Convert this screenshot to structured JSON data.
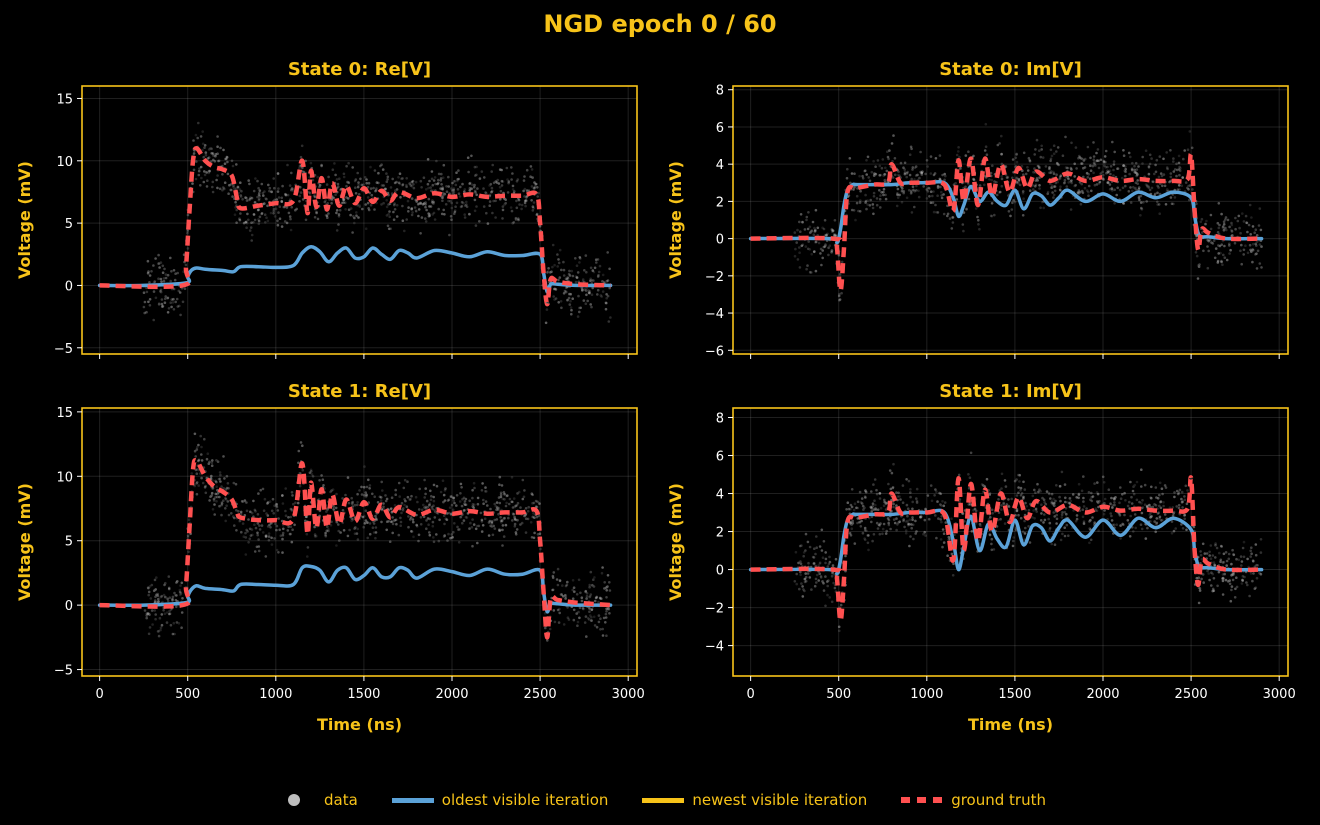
{
  "figure": {
    "suptitle": "NGD epoch 0 / 60",
    "colors": {
      "background": "#000000",
      "accent": "#F7C319",
      "tick_text": "#FFFFFF",
      "oldest": "#5BA2D8",
      "newest": "#F7C319",
      "truth": "#FF5050",
      "data": "#BDBDBD"
    }
  },
  "legend": {
    "placement": "bottom-center",
    "items": [
      {
        "label": "data",
        "kind": "dot"
      },
      {
        "label": "oldest visible iteration",
        "kind": "oldest"
      },
      {
        "label": "newest visible iteration",
        "kind": "newest"
      },
      {
        "label": "ground truth",
        "kind": "truth"
      }
    ]
  },
  "chart_data": [
    {
      "type": "line",
      "title": "State 0:  Re[V]",
      "xlabel": "",
      "ylabel": "Voltage (mV)",
      "xlim": [
        -100,
        3050
      ],
      "ylim": [
        -5.5,
        16
      ],
      "xticks": [
        0,
        500,
        1000,
        1500,
        2000,
        2500,
        3000
      ],
      "xtick_labels": [],
      "yticks": [
        -5,
        0,
        5,
        10,
        15
      ],
      "ytick_labels": [
        "−5",
        "0",
        "5",
        "10",
        "15"
      ],
      "grid": true,
      "series": [
        {
          "name": "oldest visible iteration",
          "style": "solid",
          "x": [
            0,
            250,
            490,
            500,
            520,
            550,
            600,
            700,
            760,
            800,
            900,
            1000,
            1100,
            1150,
            1200,
            1250,
            1300,
            1350,
            1400,
            1450,
            1500,
            1550,
            1600,
            1650,
            1700,
            1750,
            1800,
            1900,
            2000,
            2100,
            2200,
            2300,
            2400,
            2500,
            2520,
            2540,
            2560,
            2600,
            2700,
            2900
          ],
          "values": [
            0,
            0,
            0.2,
            0.7,
            1.2,
            1.4,
            1.3,
            1.2,
            1.1,
            1.5,
            1.5,
            1.45,
            1.6,
            2.6,
            3.1,
            2.7,
            1.9,
            2.6,
            3.0,
            2.2,
            2.3,
            3.0,
            2.5,
            2.1,
            2.8,
            2.6,
            2.2,
            2.8,
            2.6,
            2.3,
            2.7,
            2.4,
            2.4,
            2.5,
            1.0,
            -0.5,
            0.1,
            0.1,
            0,
            0
          ]
        },
        {
          "name": "ground truth",
          "style": "dashed",
          "x": [
            0,
            470,
            490,
            510,
            530,
            550,
            600,
            650,
            700,
            750,
            780,
            800,
            900,
            1000,
            1100,
            1150,
            1180,
            1200,
            1230,
            1260,
            1290,
            1320,
            1360,
            1400,
            1450,
            1500,
            1550,
            1600,
            1650,
            1700,
            1800,
            1900,
            2000,
            2100,
            2200,
            2300,
            2400,
            2480,
            2500,
            2520,
            2540,
            2560,
            2600,
            2700,
            2900
          ],
          "values": [
            0,
            0,
            1.5,
            6.0,
            10.0,
            11.0,
            10.0,
            9.5,
            9.3,
            8.8,
            7.0,
            6.2,
            6.4,
            6.6,
            6.8,
            10.0,
            5.8,
            9.2,
            6.3,
            8.6,
            6.1,
            8.2,
            6.4,
            8.0,
            6.6,
            7.8,
            6.7,
            7.6,
            6.8,
            7.5,
            7.0,
            7.4,
            7.1,
            7.3,
            7.1,
            7.2,
            7.2,
            7.3,
            5.0,
            1.0,
            -1.5,
            0.5,
            0.3,
            0.1,
            0
          ]
        }
      ]
    },
    {
      "type": "line",
      "title": "State 0:  Im[V]",
      "xlabel": "",
      "ylabel": "Voltage (mV)",
      "xlim": [
        -100,
        3050
      ],
      "ylim": [
        -6.2,
        8.2
      ],
      "xticks": [
        0,
        500,
        1000,
        1500,
        2000,
        2500,
        3000
      ],
      "xtick_labels": [],
      "yticks": [
        -6,
        -4,
        -2,
        0,
        2,
        4,
        6,
        8
      ],
      "ytick_labels": [
        "−6",
        "−4",
        "−2",
        "0",
        "2",
        "4",
        "6",
        "8"
      ],
      "grid": true,
      "series": [
        {
          "name": "oldest visible iteration",
          "style": "solid",
          "x": [
            0,
            450,
            490,
            510,
            530,
            550,
            580,
            600,
            700,
            800,
            900,
            1000,
            1100,
            1150,
            1180,
            1210,
            1250,
            1300,
            1350,
            1400,
            1450,
            1500,
            1550,
            1600,
            1650,
            1700,
            1750,
            1800,
            1900,
            2000,
            2100,
            2200,
            2300,
            2400,
            2500,
            2520,
            2540,
            2560,
            2600,
            2700,
            2900
          ],
          "values": [
            0,
            0,
            -0.2,
            0.5,
            1.8,
            2.6,
            2.9,
            2.9,
            2.9,
            2.9,
            3.0,
            3.0,
            3.0,
            2.2,
            1.2,
            1.8,
            2.8,
            2.0,
            2.5,
            2.0,
            1.8,
            2.6,
            1.6,
            2.4,
            2.3,
            1.8,
            2.2,
            2.6,
            2.0,
            2.4,
            2.0,
            2.5,
            2.2,
            2.5,
            2.2,
            1.2,
            0.3,
            0.1,
            0.1,
            0,
            0
          ]
        },
        {
          "name": "ground truth",
          "style": "dashed",
          "x": [
            0,
            470,
            490,
            510,
            530,
            550,
            600,
            700,
            780,
            800,
            850,
            900,
            1000,
            1100,
            1150,
            1180,
            1210,
            1250,
            1290,
            1330,
            1370,
            1420,
            1470,
            1520,
            1570,
            1620,
            1700,
            1800,
            1900,
            2000,
            2100,
            2200,
            2300,
            2400,
            2480,
            2500,
            2520,
            2540,
            2560,
            2600,
            2700,
            2900
          ],
          "values": [
            0,
            0,
            -0.5,
            -2.8,
            -0.5,
            2.5,
            2.7,
            2.9,
            3.0,
            4.0,
            3.0,
            3.0,
            3.0,
            2.9,
            1.5,
            4.2,
            2.0,
            4.3,
            1.8,
            4.3,
            2.3,
            4.0,
            2.5,
            3.8,
            2.7,
            3.6,
            3.1,
            3.5,
            3.1,
            3.3,
            3.1,
            3.2,
            3.1,
            3.1,
            3.2,
            4.5,
            1.5,
            -0.6,
            0.5,
            0.3,
            0,
            0
          ]
        }
      ]
    },
    {
      "type": "line",
      "title": "State 1:  Re[V]",
      "xlabel": "Time (ns)",
      "ylabel": "Voltage (mV)",
      "xlim": [
        -100,
        3050
      ],
      "ylim": [
        -5.5,
        15.3
      ],
      "xticks": [
        0,
        500,
        1000,
        1500,
        2000,
        2500,
        3000
      ],
      "xtick_labels": [
        "0",
        "500",
        "1000",
        "1500",
        "2000",
        "2500",
        "3000"
      ],
      "yticks": [
        -5,
        0,
        5,
        10,
        15
      ],
      "ytick_labels": [
        "−5",
        "0",
        "5",
        "10",
        "15"
      ],
      "grid": true,
      "series": [
        {
          "name": "oldest visible iteration",
          "style": "solid",
          "x": [
            0,
            250,
            490,
            500,
            520,
            550,
            600,
            700,
            760,
            800,
            900,
            1000,
            1100,
            1150,
            1200,
            1250,
            1300,
            1350,
            1400,
            1450,
            1500,
            1550,
            1600,
            1650,
            1700,
            1750,
            1800,
            1900,
            2000,
            2100,
            2200,
            2300,
            2400,
            2500,
            2520,
            2540,
            2560,
            2600,
            2700,
            2900
          ],
          "values": [
            0,
            0,
            0.2,
            0.7,
            1.2,
            1.5,
            1.3,
            1.2,
            1.1,
            1.6,
            1.6,
            1.55,
            1.6,
            2.9,
            3.0,
            2.7,
            1.8,
            2.7,
            2.9,
            2.0,
            2.3,
            2.9,
            2.2,
            2.2,
            2.9,
            2.7,
            2.1,
            2.8,
            2.6,
            2.3,
            2.8,
            2.4,
            2.4,
            2.7,
            1.0,
            -0.5,
            0.1,
            0.1,
            0,
            0
          ]
        },
        {
          "name": "ground truth",
          "style": "dashed",
          "x": [
            0,
            470,
            490,
            510,
            530,
            550,
            600,
            650,
            700,
            750,
            780,
            800,
            900,
            1000,
            1100,
            1150,
            1180,
            1200,
            1230,
            1260,
            1290,
            1320,
            1360,
            1400,
            1450,
            1500,
            1550,
            1600,
            1650,
            1700,
            1800,
            1900,
            2000,
            2100,
            2200,
            2300,
            2400,
            2480,
            2500,
            2520,
            2540,
            2560,
            2600,
            2700,
            2900
          ],
          "values": [
            0,
            0,
            1.5,
            6.0,
            10.5,
            11.2,
            10.0,
            9.2,
            8.8,
            8.2,
            7.2,
            6.8,
            6.6,
            6.6,
            6.7,
            11.0,
            5.5,
            9.5,
            6.0,
            9.0,
            6.0,
            8.6,
            6.3,
            8.2,
            6.5,
            8.0,
            6.7,
            7.8,
            6.8,
            7.6,
            7.0,
            7.4,
            7.1,
            7.3,
            7.1,
            7.2,
            7.2,
            7.3,
            5.0,
            1.0,
            -2.5,
            0.5,
            0.4,
            0.2,
            0
          ]
        }
      ]
    },
    {
      "type": "line",
      "title": "State 1:  Im[V]",
      "xlabel": "Time (ns)",
      "ylabel": "Voltage (mV)",
      "xlim": [
        -100,
        3050
      ],
      "ylim": [
        -5.6,
        8.5
      ],
      "xticks": [
        0,
        500,
        1000,
        1500,
        2000,
        2500,
        3000
      ],
      "xtick_labels": [
        "0",
        "500",
        "1000",
        "1500",
        "2000",
        "2500",
        "3000"
      ],
      "yticks": [
        -4,
        -2,
        0,
        2,
        4,
        6,
        8
      ],
      "ytick_labels": [
        "−4",
        "−2",
        "0",
        "2",
        "4",
        "6",
        "8"
      ],
      "grid": true,
      "series": [
        {
          "name": "oldest visible iteration",
          "style": "solid",
          "x": [
            0,
            450,
            490,
            510,
            530,
            550,
            580,
            600,
            700,
            800,
            900,
            1000,
            1100,
            1150,
            1180,
            1210,
            1250,
            1300,
            1350,
            1400,
            1450,
            1500,
            1550,
            1600,
            1650,
            1700,
            1750,
            1800,
            1900,
            2000,
            2100,
            2200,
            2300,
            2400,
            2500,
            2520,
            2540,
            2560,
            2600,
            2700,
            2900
          ],
          "values": [
            0,
            0,
            -0.2,
            0.5,
            1.8,
            2.6,
            2.9,
            2.9,
            2.9,
            2.9,
            3.0,
            3.0,
            3.0,
            1.5,
            0,
            1.2,
            2.8,
            1.0,
            2.4,
            1.6,
            1.2,
            2.6,
            1.3,
            2.3,
            2.2,
            1.5,
            2.2,
            2.6,
            1.7,
            2.6,
            1.8,
            2.7,
            2.2,
            2.7,
            2.1,
            1.0,
            0.2,
            0.1,
            0.1,
            0,
            0
          ]
        },
        {
          "name": "ground truth",
          "style": "dashed",
          "x": [
            0,
            470,
            490,
            510,
            530,
            550,
            600,
            700,
            780,
            800,
            850,
            900,
            1000,
            1100,
            1150,
            1180,
            1210,
            1250,
            1290,
            1330,
            1370,
            1420,
            1470,
            1520,
            1570,
            1620,
            1700,
            1800,
            1900,
            2000,
            2100,
            2200,
            2300,
            2400,
            2480,
            2500,
            2520,
            2540,
            2560,
            2600,
            2700,
            2900
          ],
          "values": [
            0,
            0,
            -0.5,
            -2.7,
            -0.5,
            2.5,
            2.7,
            2.9,
            3.0,
            4.0,
            3.0,
            3.0,
            3.0,
            2.9,
            0.5,
            4.8,
            1.0,
            4.5,
            1.5,
            4.2,
            2.0,
            4.0,
            2.5,
            3.8,
            2.7,
            3.6,
            3.0,
            3.4,
            3.0,
            3.3,
            3.1,
            3.2,
            3.1,
            3.1,
            3.2,
            4.8,
            1.0,
            -0.8,
            0.5,
            0.3,
            0,
            0
          ]
        }
      ]
    }
  ]
}
